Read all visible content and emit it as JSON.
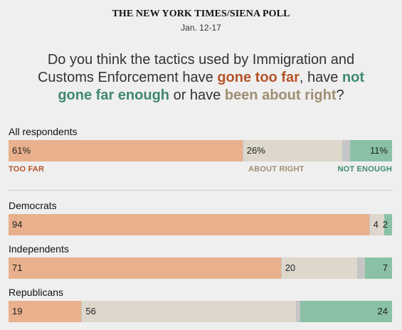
{
  "header": {
    "source": "THE NEW YORK TIMES/SIENA POLL",
    "dates": "Jan. 12-17"
  },
  "question": {
    "part1": "Do you think the tactics used by Immigration and Customs Enforcement have ",
    "too_far": "gone too far",
    "part2": ", have ",
    "not_enough": "not gone far enough",
    "part3": " or have ",
    "about_right": "been about right",
    "part4": "?"
  },
  "legend": {
    "too_far": "TOO FAR",
    "about_right": "ABOUT RIGHT",
    "not_enough": "NOT ENOUGH"
  },
  "colors": {
    "too_far": "#e8b08c",
    "about_right": "#ddd7cc",
    "other": "#c5c5c5",
    "not_enough": "#8ac0a6",
    "too_far_text": "#b5532a",
    "about_right_text": "#a08e74",
    "not_enough_text": "#3e8a6c"
  },
  "chart_data": {
    "type": "bar",
    "orientation": "horizontal-stacked",
    "categories": [
      "All respondents",
      "Democrats",
      "Independents",
      "Republicans"
    ],
    "value_labels": [
      [
        "61%",
        "26%",
        "11%"
      ],
      [
        "94",
        "4",
        "2"
      ],
      [
        "71",
        "20",
        "7"
      ],
      [
        "19",
        "56",
        "24"
      ]
    ],
    "series": [
      {
        "name": "TOO FAR",
        "values": [
          61,
          94,
          71,
          19
        ]
      },
      {
        "name": "ABOUT RIGHT",
        "values": [
          26,
          4,
          20,
          56
        ]
      },
      {
        "name": "NOT ENOUGH",
        "values": [
          11,
          2,
          7,
          24
        ]
      }
    ],
    "xlim": [
      0,
      100
    ],
    "grid": false,
    "legend": "below-first-bar"
  }
}
